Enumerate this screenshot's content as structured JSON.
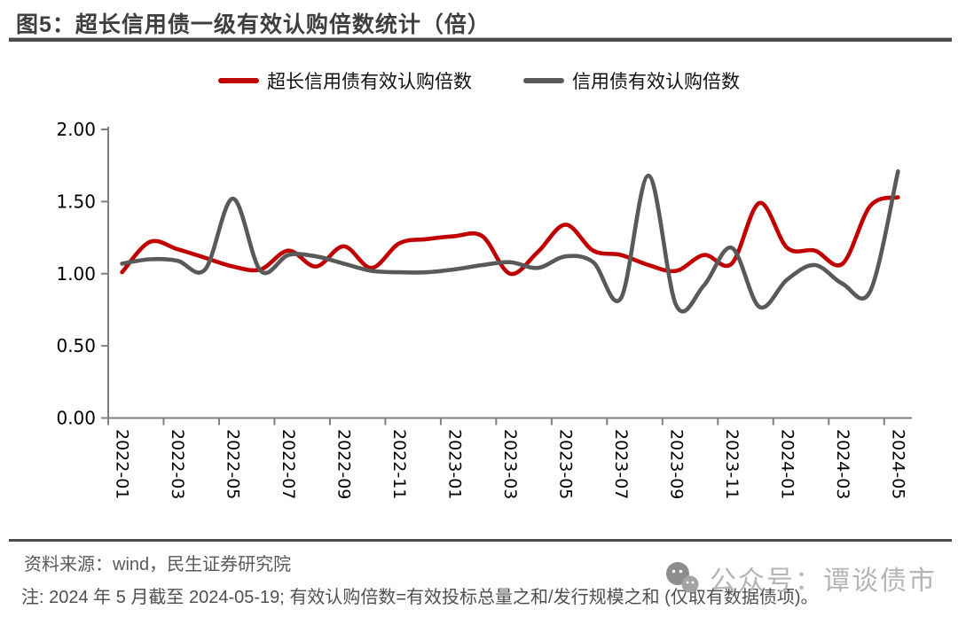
{
  "header": {
    "title": "图5：超长信用债一级有效认购倍数统计（倍）"
  },
  "legend": [
    {
      "label": "超长信用债有效认购倍数",
      "color": "#c00000"
    },
    {
      "label": "信用债有效认购倍数",
      "color": "#595959"
    }
  ],
  "chart_data": {
    "type": "line",
    "title": "图5：超长信用债一级有效认购倍数统计（倍）",
    "x": [
      "2022-01",
      "2022-02",
      "2022-03",
      "2022-04",
      "2022-05",
      "2022-06",
      "2022-07",
      "2022-08",
      "2022-09",
      "2022-10",
      "2022-11",
      "2022-12",
      "2023-01",
      "2023-02",
      "2023-03",
      "2023-04",
      "2023-05",
      "2023-06",
      "2023-07",
      "2023-08",
      "2023-09",
      "2023-10",
      "2023-11",
      "2023-12",
      "2024-01",
      "2024-02",
      "2024-03",
      "2024-04",
      "2024-05"
    ],
    "x_tick_labels": [
      "2022-01",
      "2022-03",
      "2022-05",
      "2022-07",
      "2022-09",
      "2022-11",
      "2023-01",
      "2023-03",
      "2023-05",
      "2023-07",
      "2023-09",
      "2023-11",
      "2024-01",
      "2024-03",
      "2024-05"
    ],
    "series": [
      {
        "name": "超长信用债有效认购倍数",
        "color": "#c00000",
        "values": [
          1.01,
          1.22,
          1.17,
          1.11,
          1.05,
          1.03,
          1.16,
          1.05,
          1.19,
          1.04,
          1.21,
          1.24,
          1.26,
          1.26,
          1.0,
          1.15,
          1.34,
          1.16,
          1.13,
          1.06,
          1.02,
          1.13,
          1.07,
          1.49,
          1.18,
          1.16,
          1.07,
          1.47,
          1.53
        ]
      },
      {
        "name": "信用债有效认购倍数",
        "color": "#595959",
        "values": [
          1.07,
          1.1,
          1.09,
          1.03,
          1.52,
          1.02,
          1.13,
          1.12,
          1.07,
          1.02,
          1.01,
          1.01,
          1.03,
          1.06,
          1.08,
          1.04,
          1.12,
          1.08,
          0.83,
          1.68,
          0.78,
          0.92,
          1.18,
          0.77,
          0.96,
          1.06,
          0.93,
          0.88,
          1.71
        ]
      }
    ],
    "ylim": [
      0.0,
      2.0
    ],
    "y_ticks": [
      "0.00",
      "0.50",
      "1.00",
      "1.50",
      "2.00"
    ],
    "xlabel": "",
    "ylabel": "",
    "grid": false,
    "legend_position": "top-center",
    "axis_color": "#7f7f7f",
    "tick_label_color": "#000000"
  },
  "footer": {
    "source": "资料来源：wind，民生证券研究院",
    "note": "注: 2024 年 5 月截至 2024-05-19; 有效认购倍数=有效投标总量之和/发行规模之和 (仅取有数据债项)。"
  },
  "watermark": {
    "icon": "wechat-icon",
    "text": "公众号：谭谈债市"
  }
}
